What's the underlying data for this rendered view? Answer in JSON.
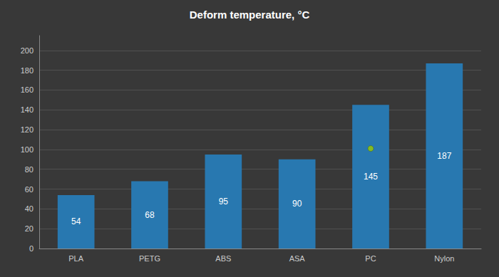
{
  "chart_data": {
    "type": "bar",
    "title": "Deform temperature, °C",
    "categories": [
      "PLA",
      "PETG",
      "ABS",
      "ASA",
      "PC",
      "Nylon"
    ],
    "series": [
      {
        "type": "bar",
        "color": "#2878b0",
        "values": [
          54,
          68,
          95,
          90,
          145,
          187
        ],
        "data_labels": true
      },
      {
        "type": "scatter",
        "color": "#99cc00",
        "marker": "circle",
        "values": [
          null,
          null,
          null,
          null,
          101,
          null
        ]
      }
    ],
    "ylim": [
      0,
      215
    ],
    "yticks": [
      0,
      20,
      40,
      60,
      80,
      100,
      120,
      140,
      160,
      180,
      200
    ],
    "grid": true
  }
}
